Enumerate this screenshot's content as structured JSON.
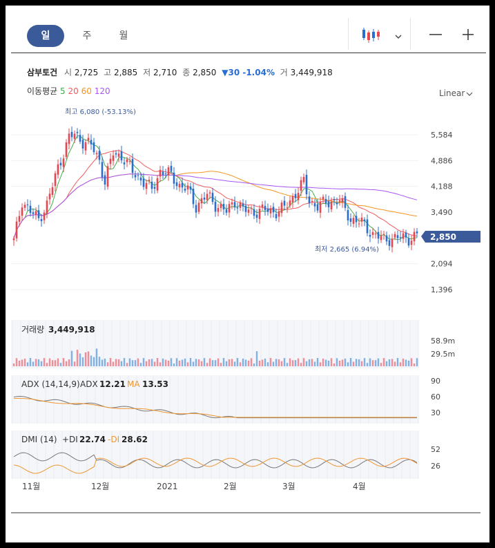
{
  "tabs": [
    {
      "key": "day",
      "label": "일",
      "active": true
    },
    {
      "key": "week",
      "label": "주",
      "active": false
    },
    {
      "key": "month",
      "label": "월",
      "active": false
    }
  ],
  "toolbar": {
    "chart_type_icon": "candlestick-icon",
    "dropdown_icon": "chevron-down-icon",
    "zoom_out_icon": "minus-icon",
    "zoom_in_icon": "plus-icon"
  },
  "stock": {
    "name": "삼부토건",
    "open_label": "시",
    "open": "2,725",
    "high_label": "고",
    "high": "2,885",
    "low_label": "저",
    "low": "2,710",
    "close_label": "종",
    "close": "2,850",
    "change": "▼30 -1.04%",
    "volume_label": "거",
    "volume": "3,449,918"
  },
  "ma_legend": {
    "label": "이동평균",
    "periods": [
      {
        "value": "5",
        "color": "#3fae49"
      },
      {
        "value": "20",
        "color": "#ef5b5b"
      },
      {
        "value": "60",
        "color": "#f7941d"
      },
      {
        "value": "120",
        "color": "#a855f7"
      }
    ]
  },
  "scale_selector": "Linear",
  "colors": {
    "up": "#e8454e",
    "down": "#2a6dd2",
    "badge": "#3a5a9a",
    "adx": "#777777",
    "ma_line": "#f0952f"
  },
  "chart_data": [
    {
      "type": "candlestick",
      "name": "price",
      "yticks": [
        "5,584",
        "4,886",
        "4,188",
        "3,490",
        "2,094",
        "1,396"
      ],
      "current_badge": "2,850",
      "high_marker": "최고 6,080 (-53.13%)",
      "low_marker": "최저 2,665 (6.94%)",
      "x_labels": [
        "11월",
        "12월",
        "2021",
        "2월",
        "3월",
        "4월"
      ],
      "ma_series": [
        {
          "name": "5",
          "values_approx": "follows close"
        },
        {
          "name": "20",
          "values_approx": "follows close"
        },
        {
          "name": "60",
          "values_approx": "follows close"
        },
        {
          "name": "120",
          "values_approx": "follows close"
        }
      ]
    },
    {
      "type": "bar",
      "name": "volume",
      "title": "거래량",
      "last_value": "3,449,918",
      "yticks": [
        "58.9m",
        "29.5m"
      ]
    },
    {
      "type": "line",
      "name": "adx",
      "title": "ADX (14,14,9)",
      "series": [
        {
          "name": "ADX",
          "last": "12.21"
        },
        {
          "name": "MA",
          "last": "13.53"
        }
      ],
      "yticks": [
        "90",
        "60",
        "30"
      ]
    },
    {
      "type": "line",
      "name": "dmi",
      "title": "DMI (14)",
      "series": [
        {
          "name": "+DI",
          "last": "22.74"
        },
        {
          "name": "-DI",
          "last": "28.62"
        }
      ],
      "yticks": [
        "52",
        "26"
      ]
    }
  ]
}
